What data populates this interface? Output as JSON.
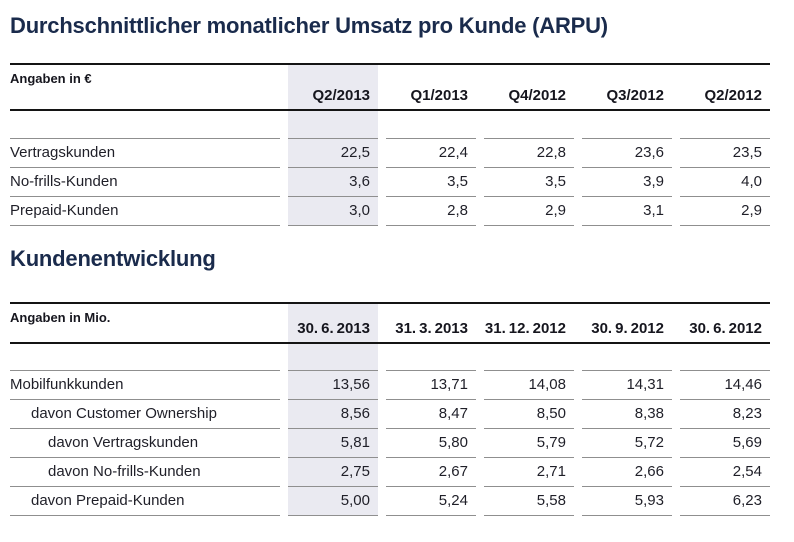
{
  "section1": {
    "title": "Durchschnittlicher monatlicher Umsatz pro Kunde (ARPU)",
    "table": {
      "unit_label": "Angaben in €",
      "highlighted_column": "Q2/2013",
      "columns": [
        "Q2/2013",
        "Q1/2013",
        "Q4/2012",
        "Q3/2012",
        "Q2/2012"
      ],
      "rows": [
        {
          "label": "Vertragskunden",
          "values": [
            "22,5",
            "22,4",
            "22,8",
            "23,6",
            "23,5"
          ]
        },
        {
          "label": "No-frills-Kunden",
          "values": [
            "3,6",
            "3,5",
            "3,5",
            "3,9",
            "4,0"
          ]
        },
        {
          "label": "Prepaid-Kunden",
          "values": [
            "3,0",
            "2,8",
            "2,9",
            "3,1",
            "2,9"
          ]
        }
      ]
    }
  },
  "section2": {
    "title": "Kundenentwicklung",
    "table": {
      "unit_label": "Angaben in Mio.",
      "highlighted_column": "30.6.2013",
      "columns": [
        "30. 6. 2013",
        "31. 3. 2013",
        "31. 12. 2012",
        "30. 9. 2012",
        "30. 6. 2012"
      ],
      "rows": [
        {
          "label": "Mobilfunkkunden",
          "indent": 0,
          "values": [
            "13,56",
            "13,71",
            "14,08",
            "14,31",
            "14,46"
          ]
        },
        {
          "label": "davon Customer Ownership",
          "indent": 1,
          "values": [
            "8,56",
            "8,47",
            "8,50",
            "8,38",
            "8,23"
          ]
        },
        {
          "label": "davon Vertragskunden",
          "indent": 2,
          "values": [
            "5,81",
            "5,80",
            "5,79",
            "5,72",
            "5,69"
          ]
        },
        {
          "label": "davon No-frills-Kunden",
          "indent": 2,
          "values": [
            "2,75",
            "2,67",
            "2,71",
            "2,66",
            "2,54"
          ]
        },
        {
          "label": "davon Prepaid-Kunden",
          "indent": 1,
          "values": [
            "5,00",
            "5,24",
            "5,58",
            "5,93",
            "6,23"
          ]
        }
      ]
    }
  },
  "colors": {
    "title_navy": "#1a2b4c",
    "highlight_column_bg": "#eaeaf1",
    "rule_black": "#141414",
    "rule_gray": "#8f8f8f",
    "body_text": "#1f1f28"
  }
}
